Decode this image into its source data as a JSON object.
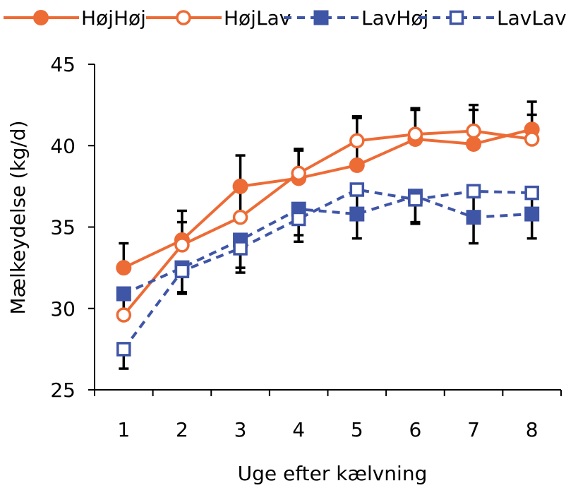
{
  "chart_data": {
    "type": "line",
    "title": "",
    "xlabel": "Uge efter kælvning",
    "ylabel": "Mælkeydelse (kg/d)",
    "categories": [
      "1",
      "2",
      "3",
      "4",
      "5",
      "6",
      "7",
      "8"
    ],
    "x": [
      1,
      2,
      3,
      4,
      5,
      6,
      7,
      8
    ],
    "ylim": [
      25,
      45
    ],
    "yticks": [
      "25",
      "30",
      "35",
      "40",
      "45"
    ],
    "grid": false,
    "legend": "top",
    "series": [
      {
        "name": "HøjHøj",
        "color": "#ED6B35",
        "line": "solid",
        "marker": "circle-filled",
        "values": [
          32.5,
          34.2,
          37.5,
          38.0,
          38.8,
          40.4,
          40.1,
          41.0
        ],
        "error_upper": [
          34.0,
          36.0,
          39.4,
          39.7,
          41.7,
          42.3,
          42.5,
          42.7
        ]
      },
      {
        "name": "HøjLav",
        "color": "#ED6B35",
        "line": "solid",
        "marker": "circle-open",
        "values": [
          29.6,
          33.9,
          35.6,
          38.3,
          40.3,
          40.7,
          40.9,
          40.4
        ],
        "error_upper": [
          31.0,
          35.3,
          37.3,
          39.8,
          41.8,
          42.2,
          42.2,
          41.9
        ]
      },
      {
        "name": "LavHøj",
        "color": "#3F55A6",
        "line": "dashed",
        "marker": "square-filled",
        "values": [
          30.9,
          32.5,
          34.2,
          36.1,
          35.8,
          36.9,
          35.6,
          35.8
        ],
        "error_lower": [
          29.3,
          30.9,
          32.5,
          34.5,
          34.3,
          35.3,
          34.0,
          34.3
        ]
      },
      {
        "name": "LavLav",
        "color": "#3F55A6",
        "line": "dashed",
        "marker": "square-open",
        "values": [
          27.5,
          32.3,
          33.7,
          35.5,
          37.3,
          36.7,
          37.2,
          37.1
        ],
        "error_lower": [
          26.3,
          31.0,
          32.2,
          34.1,
          35.8,
          35.2,
          35.7,
          35.6
        ]
      }
    ]
  }
}
